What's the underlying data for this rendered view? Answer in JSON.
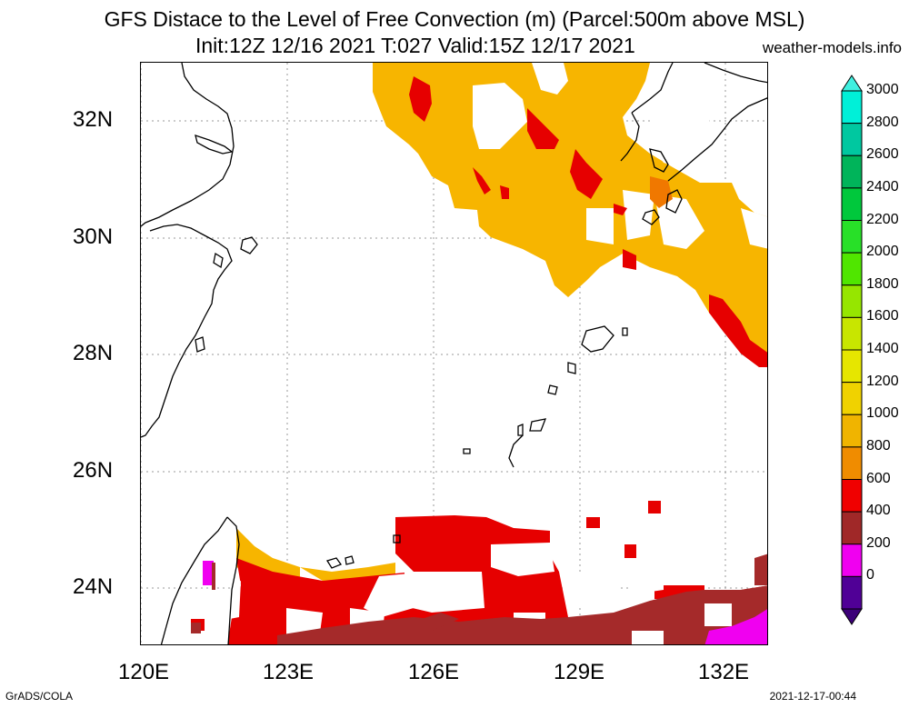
{
  "title": {
    "line1": "GFS Distace to the Level of Free Convection (m) (Parcel:500m above MSL)",
    "line2": "Init:12Z 12/16 2021 T:027 Valid:15Z 12/17 2021",
    "site": "weather-models.info"
  },
  "axes": {
    "lat_labels": [
      "32N",
      "30N",
      "28N",
      "26N",
      "24N"
    ],
    "lon_labels": [
      "120E",
      "123E",
      "126E",
      "129E",
      "132E"
    ]
  },
  "colorbar": {
    "levels": [
      "3000",
      "2800",
      "2600",
      "2400",
      "2200",
      "2000",
      "1800",
      "1600",
      "1400",
      "1200",
      "1000",
      "800",
      "600",
      "400",
      "200",
      "0"
    ],
    "colors": [
      "#00f0d8",
      "#00c8a0",
      "#00b45a",
      "#00c83c",
      "#28e028",
      "#50e600",
      "#96e600",
      "#c8e600",
      "#e6e600",
      "#f0d200",
      "#f0b400",
      "#f08c00",
      "#f00000",
      "#a02828",
      "#f000f0",
      "#500096"
    ],
    "bottom_arrow_color": "#3c0078",
    "top_arrow_color": "#40f0e0"
  },
  "footer": {
    "left": "GrADS/COLA",
    "right": "2021-12-17-00:44"
  }
}
